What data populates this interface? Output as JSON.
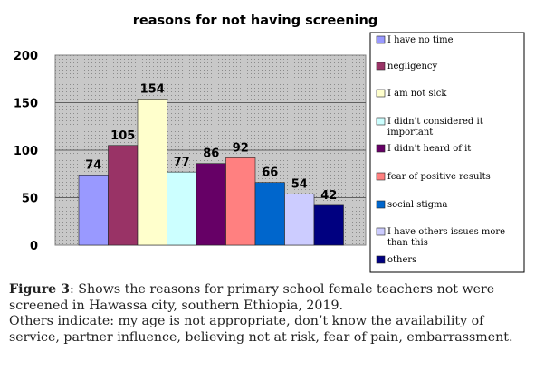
{
  "chart_data": {
    "type": "bar",
    "title": "reasons for not having screening",
    "categories": [
      "I have no time",
      "negligency",
      "I am not sick",
      "I  didn't considered it important",
      "I didn't heard of it",
      "fear of positive results",
      "social stigma",
      "I have others issues more than this",
      "others"
    ],
    "values": [
      74,
      105,
      154,
      77,
      86,
      92,
      66,
      54,
      42
    ],
    "colors": [
      "#9999FF",
      "#993366",
      "#FFFFCC",
      "#CCFFFF",
      "#660066",
      "#FF8080",
      "#0066CC",
      "#CCCCFF",
      "#000080"
    ],
    "ylim": [
      0,
      200
    ],
    "yticks": [
      "0",
      "50",
      "100",
      "150",
      "200"
    ],
    "xlabel": "",
    "ylabel": "",
    "legend_position": "right",
    "grid": "horizontal",
    "plot_background": "dotted-gray"
  },
  "caption": {
    "label": "Figure 3",
    "line1": ": Shows the reasons for primary school female teachers not were screened in Hawassa city, southern Ethiopia, 2019.",
    "line2": "Others indicate: my age is not appropriate, don’t know the availability of service, partner influence, believing not at risk, fear of pain, embarrassment."
  }
}
